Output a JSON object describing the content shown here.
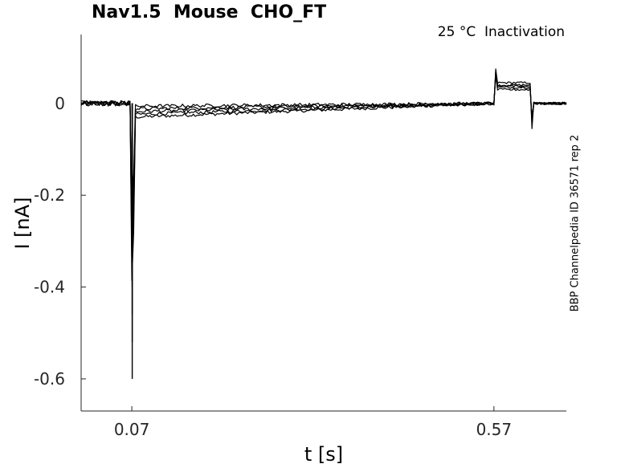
{
  "chart_data": {
    "type": "line",
    "title": "Nav1.5  Mouse  CHO_FT",
    "subtitle": "25 °C  Inactivation",
    "side_note": "BBP Channelpedia ID 36571 rep 2",
    "xlabel": "t [s]",
    "ylabel": "I [nA]",
    "xlim": [
      0.0,
      0.67
    ],
    "ylim": [
      -0.67,
      0.15
    ],
    "x_ticks": [
      0.07,
      0.57
    ],
    "x_tick_labels": [
      "0.07",
      "0.57"
    ],
    "y_ticks": [
      0,
      -0.2,
      -0.4,
      -0.6
    ],
    "y_tick_labels": [
      "0",
      "-0.2",
      "-0.4",
      "-0.6"
    ],
    "grid": false,
    "line_color": "#000000",
    "series": [
      {
        "peak": -0.6,
        "baseline": -0.025,
        "step_level": 0.045,
        "tail_dip": -0.055
      },
      {
        "peak": -0.52,
        "baseline": -0.02,
        "step_level": 0.04,
        "tail_dip": -0.045
      },
      {
        "peak": -0.46,
        "baseline": -0.015,
        "step_level": 0.035,
        "tail_dip": -0.04
      },
      {
        "peak": -0.4,
        "baseline": -0.01,
        "step_level": 0.038,
        "tail_dip": -0.035
      },
      {
        "peak": -0.34,
        "baseline": -0.005,
        "step_level": 0.03,
        "tail_dip": -0.03
      }
    ]
  }
}
